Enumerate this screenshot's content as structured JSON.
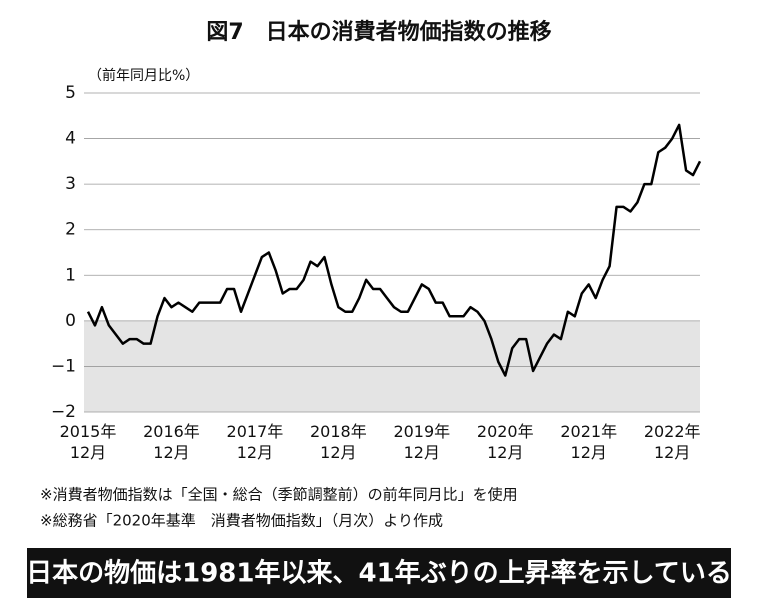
{
  "chart_data": {
    "type": "line",
    "title": "図7　日本の消費者物価指数の推移",
    "y_axis_label": "（前年同月比%）",
    "categories": [
      "2015年12月",
      null,
      null,
      null,
      null,
      null,
      null,
      null,
      null,
      null,
      null,
      null,
      "2016年12月",
      null,
      null,
      null,
      null,
      null,
      null,
      null,
      null,
      null,
      null,
      null,
      "2017年12月",
      null,
      null,
      null,
      null,
      null,
      null,
      null,
      null,
      null,
      null,
      null,
      "2018年12月",
      null,
      null,
      null,
      null,
      null,
      null,
      null,
      null,
      null,
      null,
      null,
      "2019年12月",
      null,
      null,
      null,
      null,
      null,
      null,
      null,
      null,
      null,
      null,
      null,
      "2020年12月",
      null,
      null,
      null,
      null,
      null,
      null,
      null,
      null,
      null,
      null,
      null,
      "2021年12月",
      null,
      null,
      null,
      null,
      null,
      null,
      null,
      null,
      null,
      null,
      null,
      "2022年12月",
      null,
      null,
      null,
      null
    ],
    "series": [
      {
        "name": "消費者物価指数",
        "color": "#000000",
        "values": [
          0.2,
          -0.1,
          0.3,
          -0.1,
          -0.3,
          -0.5,
          -0.4,
          -0.4,
          -0.5,
          -0.5,
          0.1,
          0.5,
          0.3,
          0.4,
          0.3,
          0.2,
          0.4,
          0.4,
          0.4,
          0.4,
          0.7,
          0.7,
          0.2,
          0.6,
          1.0,
          1.4,
          1.5,
          1.1,
          0.6,
          0.7,
          0.7,
          0.9,
          1.3,
          1.2,
          1.4,
          0.8,
          0.3,
          0.2,
          0.2,
          0.5,
          0.9,
          0.7,
          0.7,
          0.5,
          0.3,
          0.2,
          0.2,
          0.5,
          0.8,
          0.7,
          0.4,
          0.4,
          0.1,
          0.1,
          0.1,
          0.3,
          0.2,
          0.0,
          -0.4,
          -0.9,
          -1.2,
          -0.6,
          -0.4,
          -0.4,
          -1.1,
          -0.8,
          -0.5,
          -0.3,
          -0.4,
          0.2,
          0.1,
          0.6,
          0.8,
          0.5,
          0.9,
          1.2,
          2.5,
          2.5,
          2.4,
          2.6,
          3.0,
          3.0,
          3.7,
          3.8,
          4.0,
          4.3,
          3.3,
          3.2,
          3.5
        ]
      }
    ],
    "ylim": [
      -2,
      5
    ],
    "yticks": [
      {
        "value": -2,
        "label": "−2"
      },
      {
        "value": -1,
        "label": "−1"
      },
      0,
      1,
      2,
      3,
      4,
      5
    ],
    "grid": true,
    "shade_below": 0,
    "shade_color": "#e4e4e4",
    "notes": [
      "※消費者物価指数は「全国・総合（季節調整前）の前年同月比」を使用",
      "※総務省「2020年基準　消費者物価指数」（月次）より作成"
    ],
    "banner": "日本の物価は1981年以来、41年ぶりの上昇率を示している"
  }
}
